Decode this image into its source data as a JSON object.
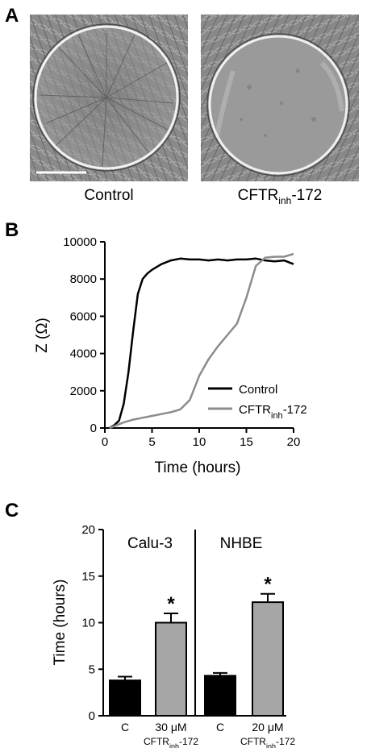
{
  "panel_a": {
    "letter": "A",
    "images": [
      {
        "label_main": "Control",
        "label_sub": "",
        "label_tail": ""
      },
      {
        "label_main": "CFTR",
        "label_sub": "inh",
        "label_tail": "-172"
      }
    ]
  },
  "panel_b": {
    "letter": "B",
    "chart_data": {
      "type": "line",
      "xlabel": "Time (hours)",
      "ylabel": "Z (Ω)",
      "xlim": [
        0,
        20
      ],
      "ylim": [
        0,
        10000
      ],
      "x_ticks": [
        "0",
        "5",
        "10",
        "15",
        "20"
      ],
      "y_ticks": [
        "0",
        "2000",
        "4000",
        "6000",
        "8000",
        "10000"
      ],
      "legend_position": "bottom-right",
      "series": [
        {
          "name": "Control",
          "name_sub": "",
          "name_tail": "",
          "color": "#000000",
          "x": [
            0.5,
            1,
            1.5,
            2,
            2.5,
            3,
            3.5,
            4,
            4.5,
            5,
            6,
            7,
            8,
            9,
            10,
            11,
            12,
            13,
            14,
            15,
            16,
            17,
            18,
            19,
            20
          ],
          "y": [
            0,
            150,
            400,
            1300,
            3000,
            5200,
            7200,
            8000,
            8300,
            8500,
            8800,
            9000,
            9100,
            9050,
            9050,
            9000,
            9050,
            9000,
            9050,
            9050,
            9100,
            9000,
            8950,
            9000,
            8800
          ]
        },
        {
          "name": "CFTR",
          "name_sub": "inh",
          "name_tail": "-172",
          "color": "#8c8c8c",
          "x": [
            0.5,
            1,
            2,
            3,
            4,
            5,
            6,
            7,
            8,
            9,
            10,
            11,
            12,
            13,
            14,
            15,
            16,
            17,
            18,
            19,
            20
          ],
          "y": [
            0,
            100,
            300,
            450,
            550,
            650,
            750,
            850,
            1000,
            1500,
            2800,
            3700,
            4400,
            5000,
            5600,
            7000,
            8700,
            9150,
            9200,
            9200,
            9350
          ]
        }
      ]
    }
  },
  "panel_c": {
    "letter": "C",
    "chart_data": {
      "type": "bar",
      "ylabel": "Time (hours)",
      "ylim": [
        0,
        20
      ],
      "y_ticks": [
        "0",
        "5",
        "10",
        "15",
        "20"
      ],
      "groups": [
        "Calu-3",
        "NHBE"
      ],
      "bars": [
        {
          "group": "Calu-3",
          "label": "C",
          "label2_main": "",
          "label2_sub": "",
          "label2_tail": "",
          "value": 3.8,
          "error": 0.4,
          "color": "#000000",
          "significant": false
        },
        {
          "group": "Calu-3",
          "label": "30 μM",
          "label2_main": "CFTR",
          "label2_sub": "inh",
          "label2_tail": "-172",
          "value": 10.0,
          "error": 1.0,
          "color": "#a6a6a6",
          "significant": true
        },
        {
          "group": "NHBE",
          "label": "C",
          "label2_main": "",
          "label2_sub": "",
          "label2_tail": "",
          "value": 4.3,
          "error": 0.3,
          "color": "#000000",
          "significant": false
        },
        {
          "group": "NHBE",
          "label": "20 μM",
          "label2_main": "CFTR",
          "label2_sub": "inh",
          "label2_tail": "-172",
          "value": 12.2,
          "error": 0.9,
          "color": "#a6a6a6",
          "significant": true
        }
      ],
      "significance_marker": "*"
    }
  }
}
